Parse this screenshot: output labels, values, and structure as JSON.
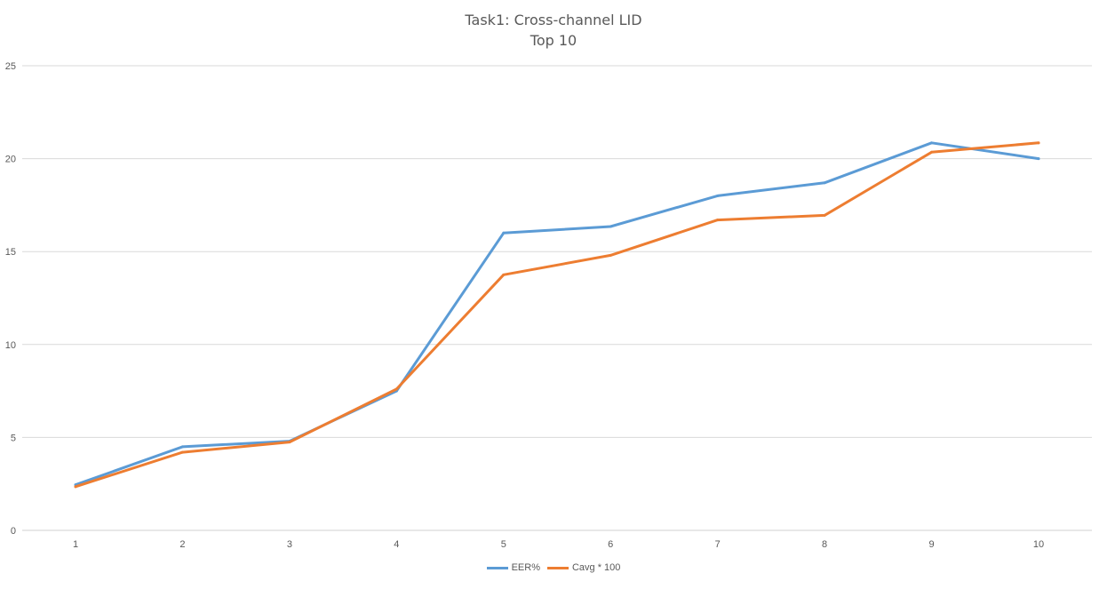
{
  "chart_data": {
    "type": "line",
    "title": "Task1: Cross-channel LID",
    "subtitle": "Top 10",
    "xlabel": "",
    "ylabel": "",
    "categories": [
      "1",
      "2",
      "3",
      "4",
      "5",
      "6",
      "7",
      "8",
      "9",
      "10"
    ],
    "ylim": [
      0,
      25
    ],
    "yticks": [
      "0",
      "5",
      "10",
      "15",
      "20",
      "25"
    ],
    "grid": true,
    "legend_position": "bottom",
    "series": [
      {
        "name": "EER%",
        "color": "#5B9BD5",
        "values": [
          2.45,
          4.5,
          4.8,
          7.5,
          16.0,
          16.35,
          18.0,
          18.7,
          20.85,
          20.0
        ]
      },
      {
        "name": "Cavg * 100",
        "color": "#ED7D31",
        "values": [
          2.35,
          4.2,
          4.75,
          7.6,
          13.75,
          14.8,
          16.7,
          16.95,
          20.35,
          20.85
        ]
      }
    ]
  }
}
